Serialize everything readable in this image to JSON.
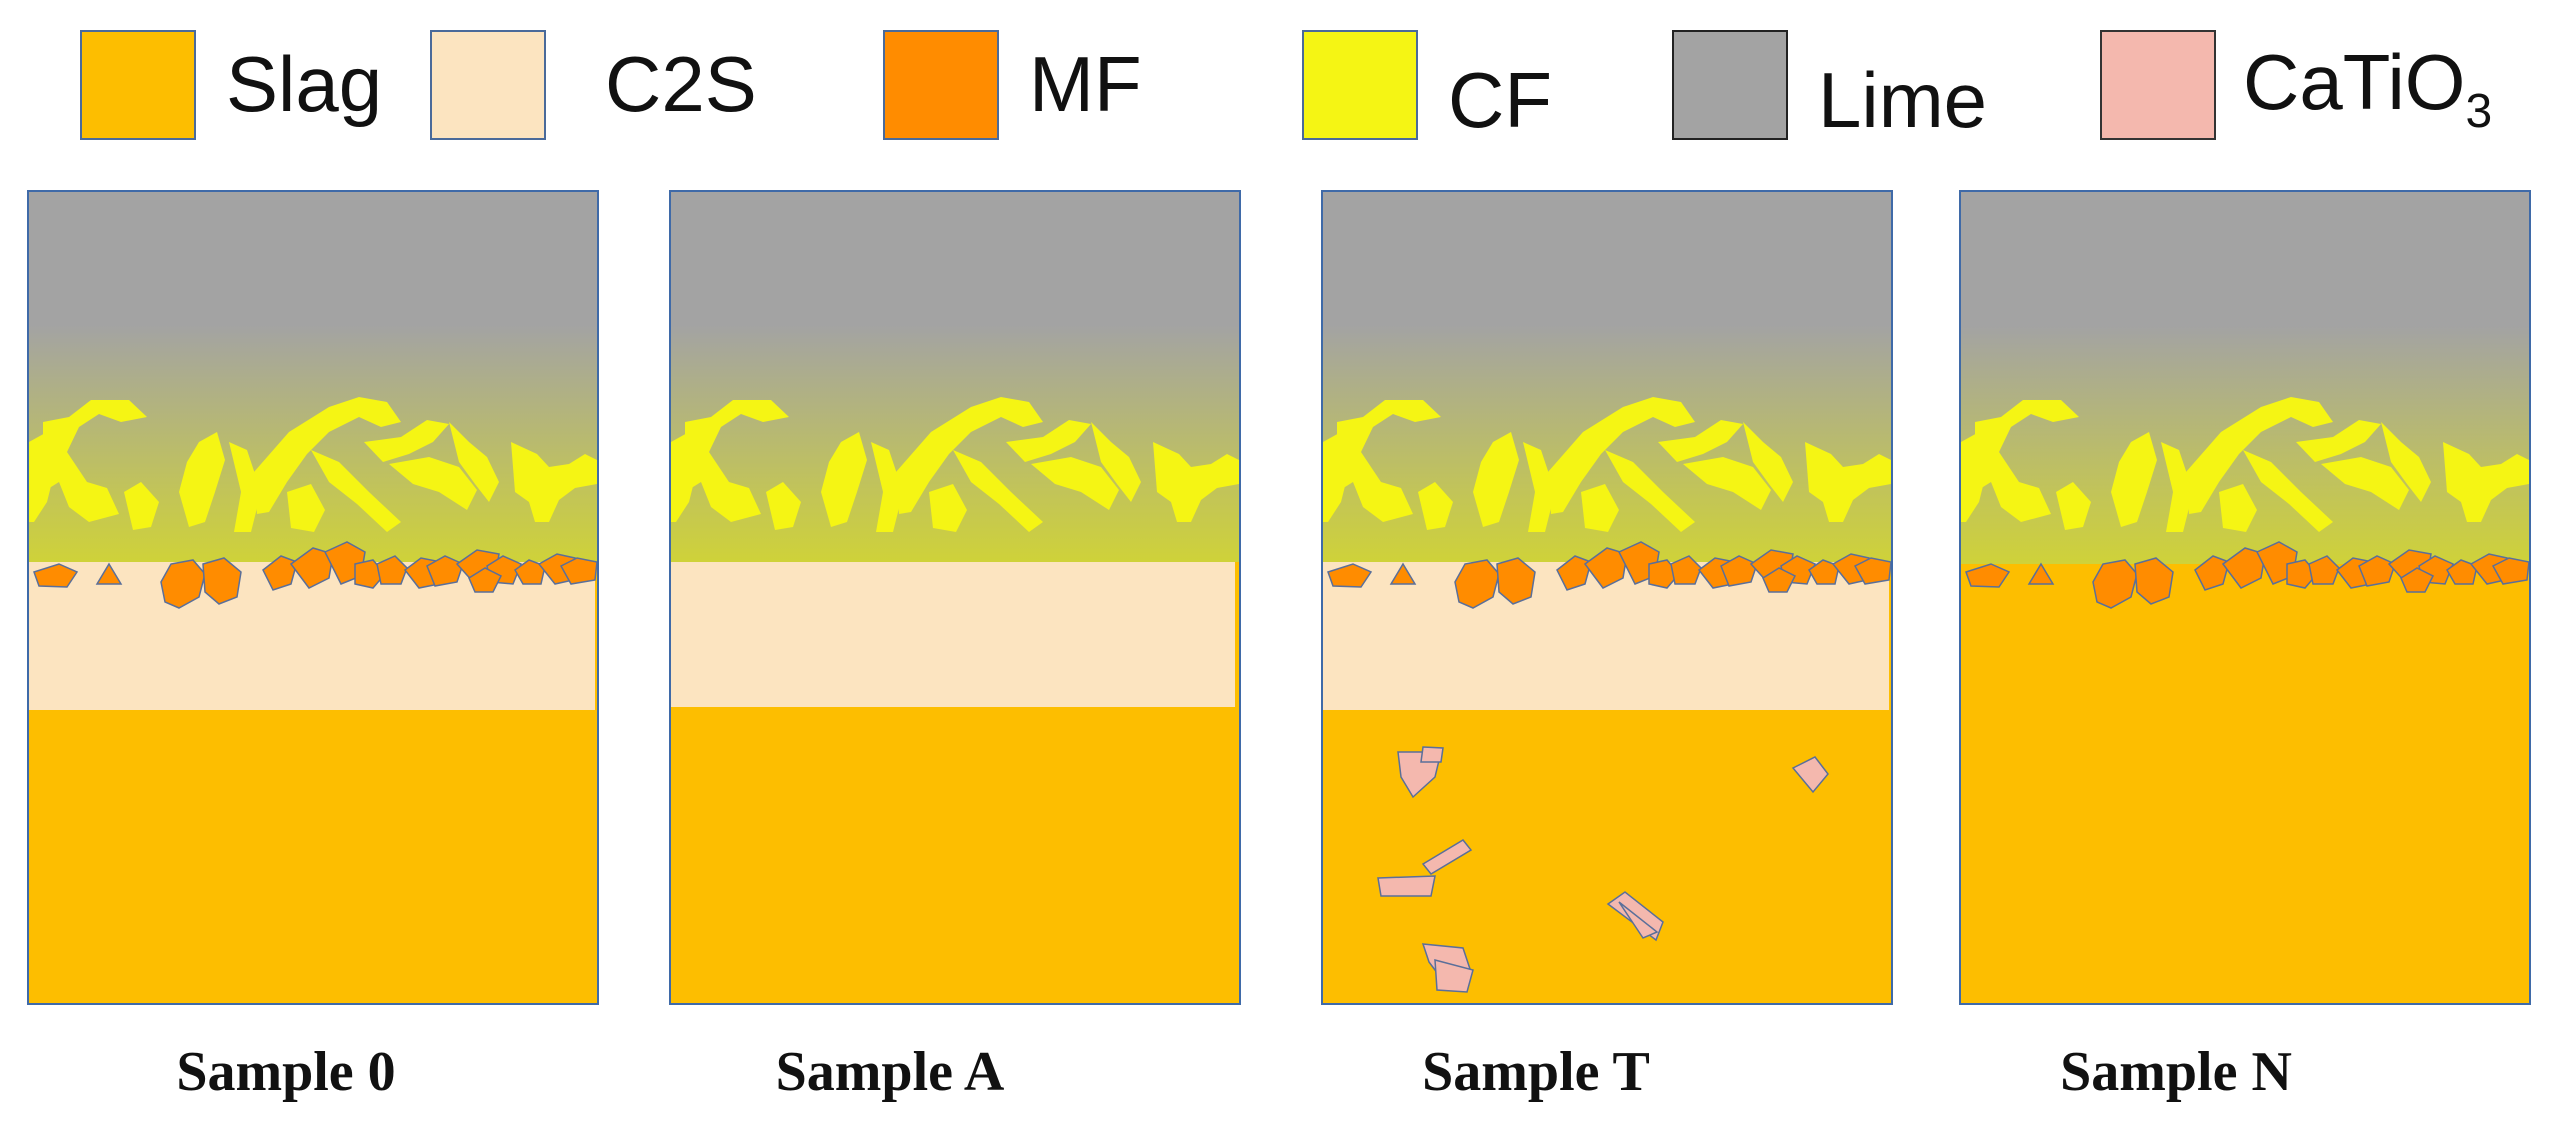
{
  "legend": [
    {
      "key": "slag",
      "label": "Slag",
      "color": "#FDBE00",
      "icon": "slag-swatch"
    },
    {
      "key": "c2s",
      "label": "C2S",
      "color": "#FCE4C0",
      "icon": "c2s-swatch"
    },
    {
      "key": "mf",
      "label": "MF",
      "color": "#FF8C00",
      "icon": "mf-swatch"
    },
    {
      "key": "cf",
      "label": "CF",
      "color": "#F5F514",
      "icon": "cf-swatch"
    },
    {
      "key": "lime",
      "label": "Lime",
      "color": "#A3A3A3",
      "icon": "lime-swatch"
    },
    {
      "key": "catio3",
      "label": "CaTiO",
      "label_sub": "3",
      "color": "#F4B8AE",
      "icon": "catio3-swatch"
    }
  ],
  "panels": [
    {
      "caption": "Sample 0",
      "c2s_layer": true,
      "mf_crystals": true,
      "catio3_crystals": false
    },
    {
      "caption": "Sample A",
      "c2s_layer": true,
      "mf_crystals": false,
      "catio3_crystals": false
    },
    {
      "caption": "Sample T",
      "c2s_layer": true,
      "mf_crystals": true,
      "catio3_crystals": true
    },
    {
      "caption": "Sample N",
      "c2s_layer": false,
      "mf_crystals": true,
      "catio3_crystals": false
    }
  ]
}
